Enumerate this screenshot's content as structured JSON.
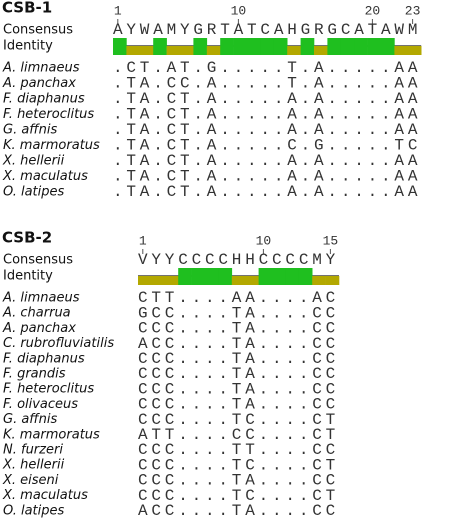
{
  "blocks": [
    {
      "title": "CSB-1",
      "ruler": [
        1,
        10,
        20,
        23
      ],
      "consensus_label": "Consensus",
      "identity_label": "Identity",
      "consensus": "AYWAMYGRTATCAHGRGCATAWM",
      "rows": [
        [
          "A. limnaeus",
          ".CT.AT.G.....T.A.....AA"
        ],
        [
          "A. panchax",
          ".TA.CC.A.....T.A.....AA"
        ],
        [
          "F. diaphanus",
          ".TA.CT.A.....A.A.....AA"
        ],
        [
          "F. heteroclitus",
          ".TA.CT.A.....A.A.....AA"
        ],
        [
          "G. affnis",
          ".TA.CT.A.....A.A.....AA"
        ],
        [
          "K. marmoratus",
          ".TA.CT.A.....C.G.....TC"
        ],
        [
          "X. hellerii",
          ".TA.CT.A.....A.A.....AA"
        ],
        [
          "X. maculatus",
          ".TA.CT.A.....A.A.....AA"
        ],
        [
          "O. latipes",
          ".TA.CT.A.....A.A.....AA"
        ]
      ]
    },
    {
      "title": "CSB-2",
      "ruler": [
        1,
        10,
        15
      ],
      "consensus_label": "Consensus",
      "identity_label": "Identity",
      "consensus": "VYYCCCCHHCCCCMY",
      "rows": [
        [
          "A. limnaeus",
          "CTT....AA....AC"
        ],
        [
          "A. charrua",
          "GCC....TA....CC"
        ],
        [
          "A. panchax",
          "CCC....TA....CC"
        ],
        [
          "C. rubrofluviatilis",
          "ACC....TA....CC"
        ],
        [
          "F. diaphanus",
          "CCC....TA....CC"
        ],
        [
          "F. grandis",
          "CCC....TA....CC"
        ],
        [
          "F. heteroclitus",
          "CCC....TA....CC"
        ],
        [
          "F. olivaceus",
          "CCC....TA....CC"
        ],
        [
          "G. affnis",
          "CCC....TC....CT"
        ],
        [
          "K. marmoratus",
          "ATT....CC....CT"
        ],
        [
          "N. furzeri",
          "CCC....TT....CC"
        ],
        [
          "X. hellerii",
          "CCC....TC....CT"
        ],
        [
          "X. eiseni",
          "CCC....TA....CC"
        ],
        [
          "X. maculatus",
          "CCC....TC....CT"
        ],
        [
          "O. latipes",
          "ACC....TA....CC"
        ]
      ]
    }
  ]
}
